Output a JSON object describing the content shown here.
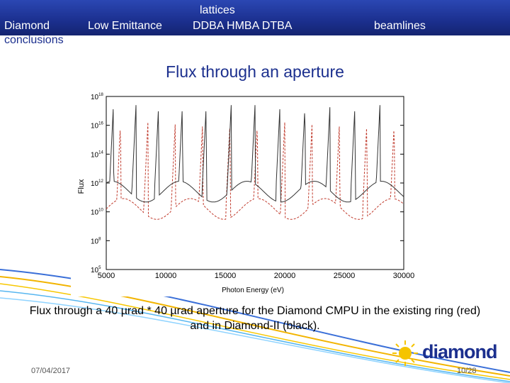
{
  "nav": {
    "diamond": "Diamond",
    "conclusions": "conclusions",
    "low_emittance": "Low Emittance",
    "lattices": "lattices",
    "lattice_types": "DDBA   HMBA   DTBA",
    "beamlines": "beamlines"
  },
  "slide_title": "Flux through an aperture",
  "caption": "Flux through a 40 µrad * 40 µrad aperture for the Diamond CMPU in the existing ring (red) and in Diamond-II (black).",
  "footer": {
    "date": "07/04/2017",
    "page": "10/28"
  },
  "logo": {
    "text": "diamond"
  },
  "colors": {
    "header_blue": "#1b2f8e",
    "logo_yellow": "#f5c400",
    "red_series": "#c0392b",
    "black_series": "#333333"
  },
  "chart_data": {
    "type": "line",
    "title": "",
    "xlabel": "Photon Energy (eV)",
    "ylabel": "Flux",
    "xlim": [
      5000,
      30000
    ],
    "x_ticks": [
      "5000",
      "10000",
      "15000",
      "20000",
      "25000",
      "30000"
    ],
    "y_ticks": [
      {
        "base": "10",
        "exp": "5"
      },
      {
        "base": "10",
        "exp": "8"
      },
      {
        "base": "10",
        "exp": "10"
      },
      {
        "base": "10",
        "exp": "12"
      },
      {
        "base": "10",
        "exp": "14"
      },
      {
        "base": "10",
        "exp": "16"
      },
      {
        "base": "10",
        "exp": "18"
      }
    ],
    "grid": false,
    "series": [
      {
        "color": "#c0392b",
        "style": "dashed",
        "peaks": [
          6200,
          8500,
          10800,
          13100,
          15400,
          17700,
          20000,
          22300,
          24600,
          26900,
          29200
        ],
        "peak_level": 0.85,
        "base_level": 0.35
      },
      {
        "color": "#333333",
        "style": "solid",
        "peaks": [
          5600,
          7500,
          9400,
          11400,
          13400,
          15500,
          17500,
          19600,
          21700,
          23800,
          25900,
          28000
        ],
        "peak_level": 0.95,
        "base_level": 0.45
      }
    ]
  }
}
